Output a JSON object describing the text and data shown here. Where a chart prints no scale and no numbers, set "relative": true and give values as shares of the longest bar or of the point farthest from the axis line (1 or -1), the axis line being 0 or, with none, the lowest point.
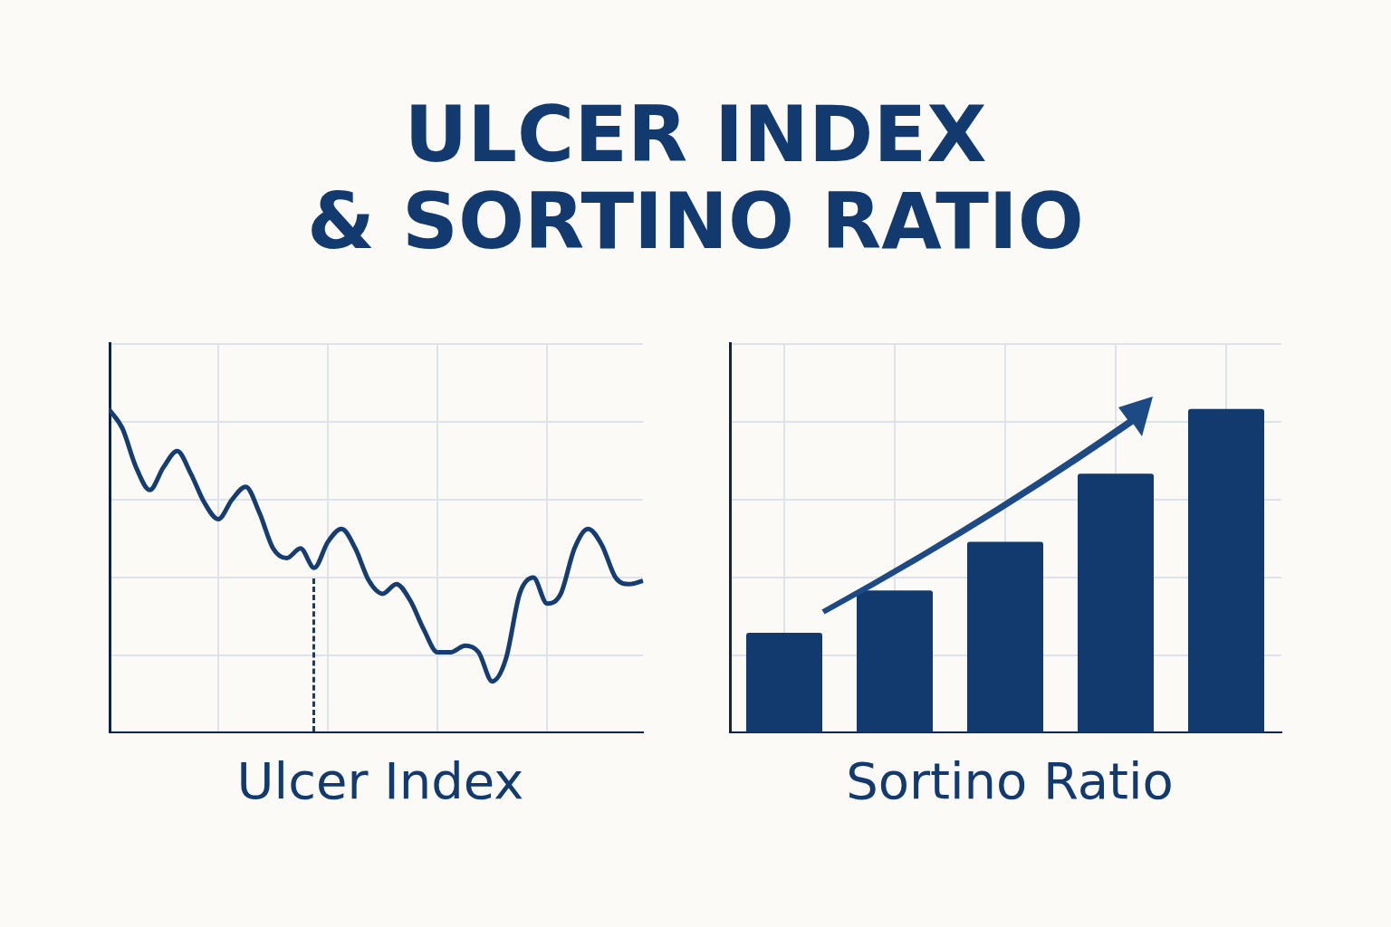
{
  "chart_data": [
    {
      "type": "line",
      "title": "ULCER INDEX\n& SORTINO RATIO",
      "xlabel": "Ulcer Index",
      "relative": true,
      "grid": true,
      "marker": "none",
      "color": "#163d72",
      "categories": [
        null,
        null,
        null,
        null,
        null,
        null,
        null,
        null,
        null,
        null,
        null,
        null,
        null,
        null,
        null,
        null,
        null,
        null,
        null,
        null,
        null,
        null,
        null,
        null,
        null,
        null,
        null,
        null,
        null,
        null,
        null,
        null,
        null,
        null,
        null,
        null,
        null,
        null,
        null,
        null
      ],
      "values": [
        1,
        0.94,
        0.82,
        0.75,
        0.82,
        0.87,
        0.8,
        0.71,
        0.66,
        0.72,
        0.76,
        0.68,
        0.57,
        0.54,
        0.57,
        0.51,
        0.59,
        0.63,
        0.57,
        0.47,
        0.43,
        0.46,
        0.41,
        0.32,
        0.25,
        0.25,
        0.27,
        0.25,
        0.16,
        0.23,
        0.43,
        0.48,
        0.4,
        0.43,
        0.57,
        0.63,
        0.58,
        0.48,
        0.46,
        0.47
      ]
    },
    {
      "type": "bar",
      "xlabel": "Sortino Ratio",
      "relative": true,
      "grid": true,
      "color": "#133a6e",
      "categories": [
        null,
        null,
        null,
        null,
        null
      ],
      "values": [
        0.31,
        0.44,
        0.59,
        0.8,
        1
      ]
    }
  ]
}
